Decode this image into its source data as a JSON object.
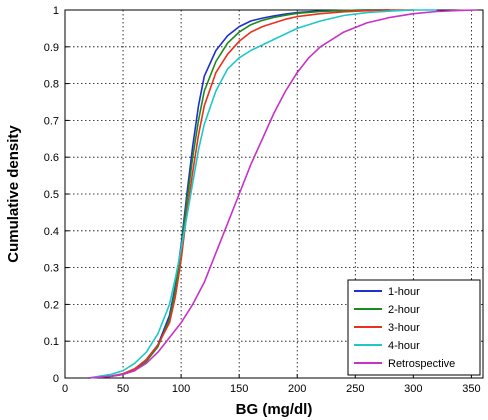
{
  "chart_data": {
    "type": "line",
    "title": "",
    "xlabel": "BG (mg/dl)",
    "ylabel": "Cumulative density",
    "xlim": [
      0,
      360
    ],
    "ylim": [
      0,
      1
    ],
    "xticks": [
      "0",
      "50",
      "100",
      "150",
      "200",
      "250",
      "300",
      "350"
    ],
    "yticks": [
      "0",
      "0.1",
      "0.2",
      "0.3",
      "0.4",
      "0.5",
      "0.6",
      "0.7",
      "0.8",
      "0.9",
      "1"
    ],
    "grid": true,
    "legend_position": "bottom-right",
    "series": [
      {
        "name": "1-hour",
        "color": "#1f2fd0",
        "x": [
          20,
          40,
          50,
          60,
          70,
          80,
          90,
          95,
          100,
          105,
          110,
          115,
          120,
          130,
          140,
          150,
          160,
          170,
          180,
          190,
          200,
          220,
          240,
          260,
          280
        ],
        "y": [
          0,
          0.005,
          0.01,
          0.02,
          0.05,
          0.09,
          0.17,
          0.25,
          0.36,
          0.5,
          0.63,
          0.74,
          0.82,
          0.89,
          0.93,
          0.955,
          0.97,
          0.978,
          0.984,
          0.989,
          0.993,
          0.997,
          0.999,
          1,
          1
        ]
      },
      {
        "name": "2-hour",
        "color": "#1a8a1a",
        "x": [
          20,
          40,
          50,
          60,
          70,
          80,
          90,
          95,
          100,
          105,
          110,
          115,
          120,
          130,
          140,
          150,
          160,
          170,
          180,
          190,
          200,
          220,
          240,
          260,
          280
        ],
        "y": [
          0,
          0.005,
          0.01,
          0.02,
          0.045,
          0.085,
          0.16,
          0.24,
          0.35,
          0.48,
          0.6,
          0.7,
          0.78,
          0.86,
          0.91,
          0.94,
          0.96,
          0.972,
          0.98,
          0.986,
          0.991,
          0.996,
          0.999,
          1,
          1
        ]
      },
      {
        "name": "3-hour",
        "color": "#e8321e",
        "x": [
          20,
          40,
          50,
          60,
          70,
          80,
          90,
          95,
          100,
          105,
          110,
          115,
          120,
          130,
          140,
          150,
          160,
          170,
          180,
          190,
          200,
          220,
          240,
          260,
          280,
          300
        ],
        "y": [
          0,
          0.005,
          0.012,
          0.025,
          0.05,
          0.09,
          0.15,
          0.22,
          0.32,
          0.45,
          0.56,
          0.66,
          0.74,
          0.83,
          0.88,
          0.915,
          0.94,
          0.955,
          0.965,
          0.975,
          0.982,
          0.99,
          0.995,
          0.998,
          1,
          1
        ]
      },
      {
        "name": "4-hour",
        "color": "#1fc8c8",
        "x": [
          20,
          40,
          50,
          60,
          70,
          80,
          90,
          95,
          100,
          105,
          110,
          115,
          120,
          130,
          140,
          150,
          160,
          170,
          180,
          190,
          200,
          220,
          240,
          260,
          280,
          300,
          320
        ],
        "y": [
          0,
          0.01,
          0.02,
          0.04,
          0.07,
          0.12,
          0.2,
          0.27,
          0.35,
          0.44,
          0.53,
          0.62,
          0.69,
          0.78,
          0.84,
          0.87,
          0.89,
          0.905,
          0.92,
          0.935,
          0.95,
          0.97,
          0.985,
          0.993,
          0.997,
          1,
          1
        ]
      },
      {
        "name": "Retrospective",
        "color": "#c832c8",
        "x": [
          20,
          40,
          50,
          60,
          70,
          80,
          90,
          100,
          110,
          120,
          130,
          140,
          150,
          160,
          170,
          180,
          190,
          200,
          210,
          220,
          240,
          260,
          280,
          300,
          320,
          340,
          355
        ],
        "y": [
          0,
          0.005,
          0.01,
          0.02,
          0.04,
          0.07,
          0.11,
          0.15,
          0.2,
          0.26,
          0.34,
          0.42,
          0.5,
          0.58,
          0.65,
          0.72,
          0.78,
          0.83,
          0.87,
          0.9,
          0.94,
          0.965,
          0.98,
          0.99,
          0.996,
          0.999,
          1
        ]
      }
    ]
  }
}
